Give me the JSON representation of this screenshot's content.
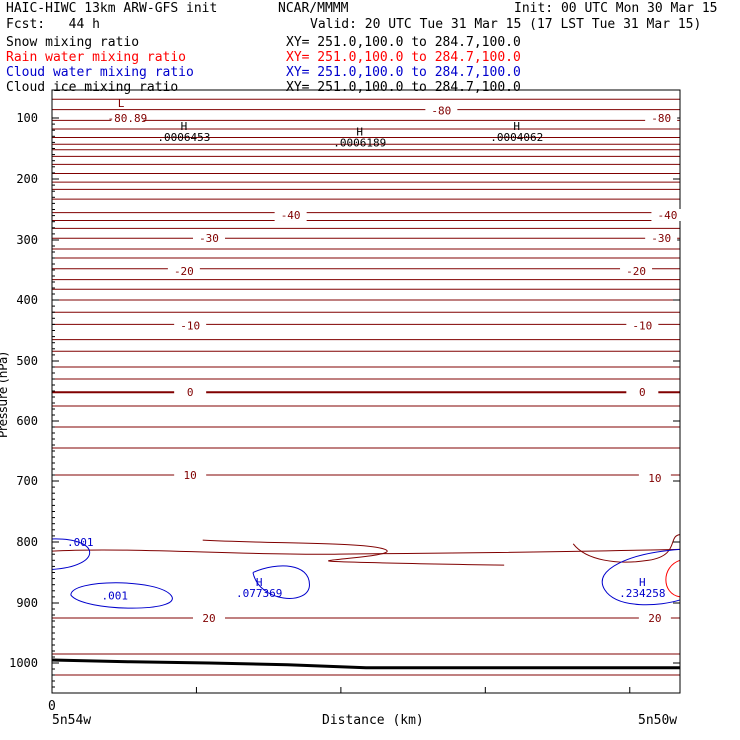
{
  "header": {
    "title_left": "HAIC-HIWC 13km ARW-GFS init",
    "center": "NCAR/MMMM",
    "init": "Init: 00 UTC Mon 30 Mar 15",
    "fcst": "Fcst:   44 h",
    "valid": "Valid: 20 UTC Tue 31 Mar 15 (17 LST Tue 31 Mar 15)"
  },
  "fields": [
    {
      "label": "Snow mixing ratio",
      "xy": "XY= 251.0,100.0 to 284.7,100.0",
      "color": "#000000"
    },
    {
      "label": "Rain water mixing ratio",
      "xy": "XY= 251.0,100.0 to 284.7,100.0",
      "color": "#ff0000"
    },
    {
      "label": "Cloud water mixing ratio",
      "xy": "XY= 251.0,100.0 to 284.7,100.0",
      "color": "#0000cc"
    },
    {
      "label": "Cloud ice mixing ratio",
      "xy": "XY= 251.0,100.0 to 284.7,100.0",
      "color": "#000000"
    }
  ],
  "chart_data": {
    "type": "line",
    "title": "",
    "xlabel": "Distance (km)",
    "ylabel": "Pressure (hPa)",
    "x_tick_labels": [
      "0"
    ],
    "x_endpoints": [
      "5n54w",
      "5n50w"
    ],
    "y_ticks": [
      100,
      200,
      300,
      400,
      500,
      600,
      700,
      800,
      900,
      1000
    ],
    "ylim": [
      1050,
      70
    ],
    "temperature_color": "#800000",
    "cloud_color": "#0000cc",
    "temperature_isotherm_pressures": [
      80,
      91,
      104,
      118,
      132,
      143,
      152,
      163,
      176,
      191,
      205,
      217,
      233,
      255,
      268,
      281,
      297,
      315,
      330,
      348,
      366,
      382,
      400,
      420,
      440,
      465,
      484,
      510,
      530,
      552,
      575,
      610,
      645,
      690
    ],
    "contour_labels": [
      {
        "text": "-80.89",
        "x_frac": 0.12,
        "p": 100
      },
      {
        "text": "-80",
        "x_frac": 0.62,
        "p": 92
      },
      {
        "text": "-80",
        "x_frac": 0.97,
        "p": 100
      },
      {
        "text": "-40",
        "x_frac": 0.38,
        "p": 259
      },
      {
        "text": "-40",
        "x_frac": 0.98,
        "p": 259
      },
      {
        "text": "-30",
        "x_frac": 0.25,
        "p": 297
      },
      {
        "text": "-30",
        "x_frac": 0.97,
        "p": 297
      },
      {
        "text": "-20",
        "x_frac": 0.21,
        "p": 352
      },
      {
        "text": "-20",
        "x_frac": 0.93,
        "p": 352
      },
      {
        "text": "-10",
        "x_frac": 0.22,
        "p": 442
      },
      {
        "text": "-10",
        "x_frac": 0.94,
        "p": 442
      },
      {
        "text": "0",
        "x_frac": 0.22,
        "p": 552
      },
      {
        "text": "0",
        "x_frac": 0.94,
        "p": 552
      },
      {
        "text": "10",
        "x_frac": 0.22,
        "p": 690
      },
      {
        "text": "10",
        "x_frac": 0.96,
        "p": 695
      },
      {
        "text": "20",
        "x_frac": 0.25,
        "p": 925
      },
      {
        "text": "20",
        "x_frac": 0.96,
        "p": 925
      }
    ],
    "extrema": [
      {
        "symbol": "L",
        "value": "-80.89",
        "x_frac": 0.11,
        "p": 88,
        "color": "#800000"
      },
      {
        "symbol": "H",
        "value": ".0006453",
        "x_frac": 0.21,
        "p": 120,
        "color": "#000000"
      },
      {
        "symbol": "H",
        "value": ".0006189",
        "x_frac": 0.49,
        "p": 129,
        "color": "#000000"
      },
      {
        "symbol": "H",
        "value": ".0004062",
        "x_frac": 0.74,
        "p": 120,
        "color": "#000000"
      },
      {
        "symbol": "H",
        "value": ".077369",
        "x_frac": 0.33,
        "p": 872,
        "color": "#0000cc"
      },
      {
        "symbol": "H",
        "value": ".234258",
        "x_frac": 0.94,
        "p": 872,
        "color": "#0000cc"
      }
    ],
    "cloud_labels": [
      {
        "text": ".001",
        "x_frac": 0.045,
        "p": 800
      },
      {
        "text": ".001",
        "x_frac": 0.1,
        "p": 888
      }
    ],
    "terrain_pressures": [
      995,
      998,
      1000,
      1003,
      1008,
      1008,
      1008,
      1008,
      1008
    ]
  }
}
